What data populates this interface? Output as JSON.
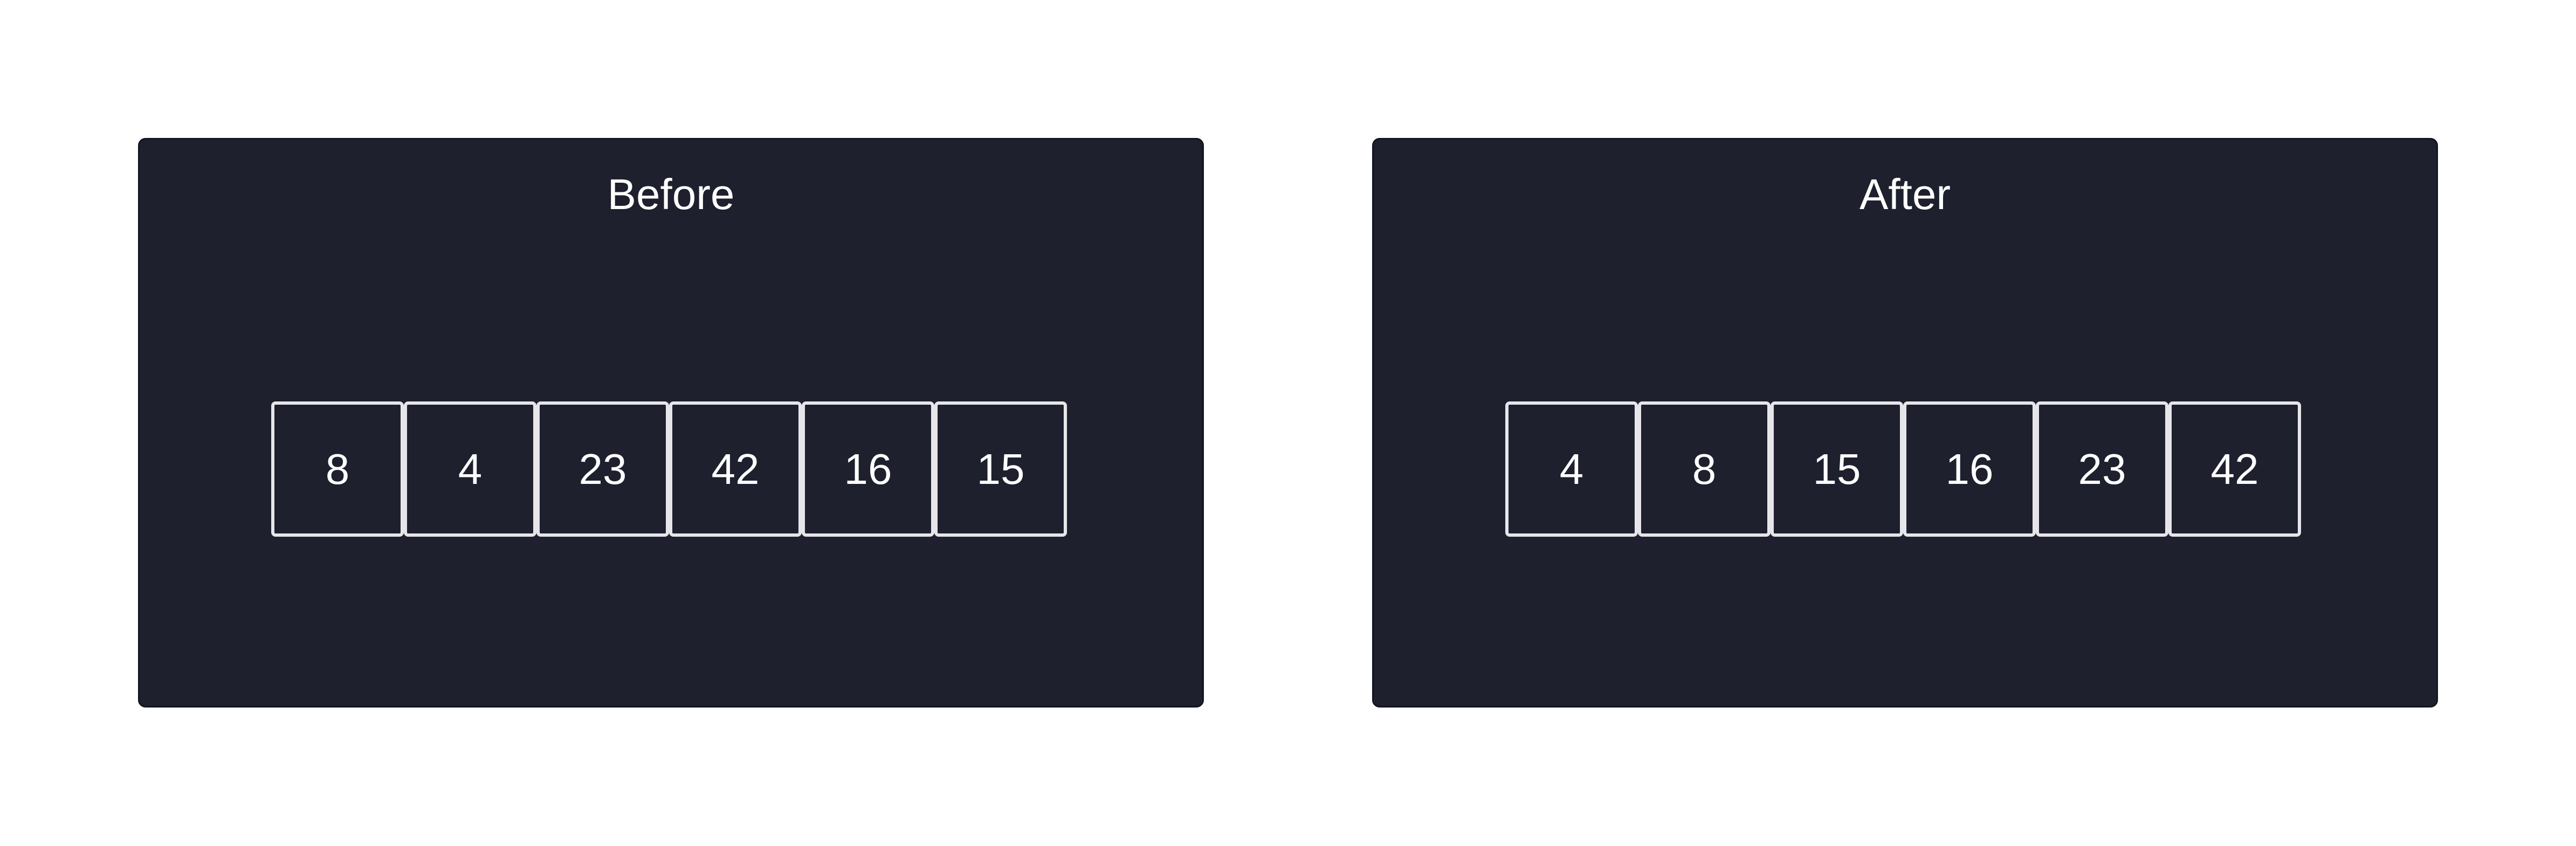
{
  "panels": [
    {
      "title": "Before",
      "values": [
        "8",
        "4",
        "23",
        "42",
        "16",
        "15"
      ]
    },
    {
      "title": "After",
      "values": [
        "4",
        "8",
        "15",
        "16",
        "23",
        "42"
      ]
    }
  ],
  "colors": {
    "page_background": "#ffffff",
    "panel_background": "#1e202e",
    "cell_border": "#e6e6ea",
    "text": "#ffffff"
  }
}
